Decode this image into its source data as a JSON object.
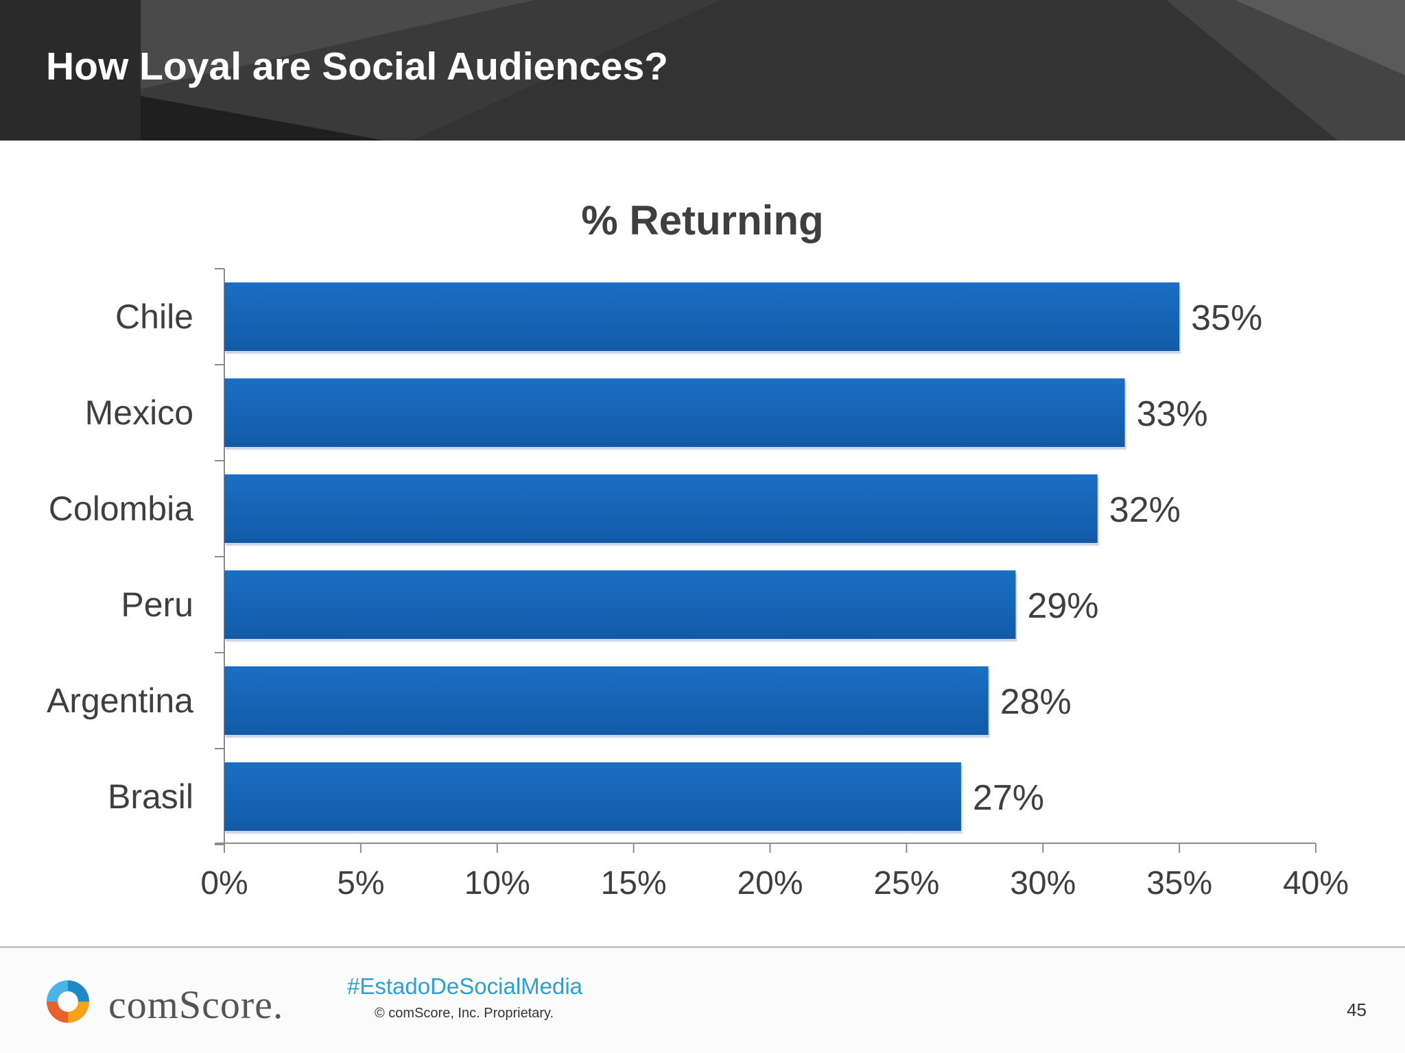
{
  "slide": {
    "title": "How Loyal are Social Audiences?",
    "page_number": "45"
  },
  "footer": {
    "brand": "comScore.",
    "hashtag": "#EstadoDeSocialMedia",
    "copyright": "© comScore, Inc.     Proprietary."
  },
  "colors": {
    "bar": "#1a6fc4",
    "bar_dark": "#125aa8",
    "header": "#2f2f2f",
    "hashtag": "#2aa0d6",
    "text": "#3f3f3f"
  },
  "chart_data": {
    "type": "bar",
    "orientation": "horizontal",
    "title": "% Returning",
    "categories": [
      "Chile",
      "Mexico",
      "Colombia",
      "Peru",
      "Argentina",
      "Brasil"
    ],
    "values": [
      35,
      33,
      32,
      29,
      28,
      27
    ],
    "data_labels": [
      "35%",
      "33%",
      "32%",
      "29%",
      "28%",
      "27%"
    ],
    "xlim": [
      0,
      40
    ],
    "x_ticks": [
      0,
      5,
      10,
      15,
      20,
      25,
      30,
      35,
      40
    ],
    "x_tick_labels": [
      "0%",
      "5%",
      "10%",
      "15%",
      "20%",
      "25%",
      "30%",
      "35%",
      "40%"
    ],
    "grid": false,
    "legend": "none"
  }
}
